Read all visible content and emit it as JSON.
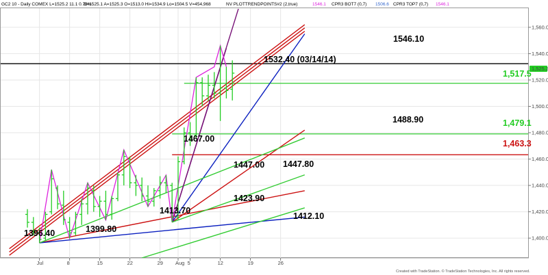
{
  "header": {
    "symbol_info": "GC2 10 - Daily   COMEX  L=1525.2  11.1  0.73%",
    "ohlc": "B=1525.1   A=1525.3   O=1513.0   Hi=1534.9   Lo=1504.5   V=454,968",
    "study_1": "NV  PLOTTRENDPOINTS#2 (2,true)",
    "study_1_value": "1546.1",
    "study_2": "CPR3 BOT7 (0,7)",
    "study_2_value": "1506.6",
    "study_3": "CPR3 TOP7 (0,7)",
    "study_3_value": "1546.1"
  },
  "footer": {
    "credit": "Created with TradeStation. © TradeStation Technologies, Inc. All rights reserved."
  },
  "colors": {
    "up_bar": "#22cc22",
    "down_bar": "#22cc22",
    "swing_line": "#dd22dd",
    "red_line": "#cc1111",
    "blue_line": "#0a1fbf",
    "green_line": "#33cc33",
    "purple_line": "#771177",
    "last_price_tag": "#22cc22"
  },
  "annotations": [
    {
      "text": "1396.40",
      "color": "#000000"
    },
    {
      "text": "1399.80",
      "color": "#000000"
    },
    {
      "text": "1413.70",
      "color": "#000000"
    },
    {
      "text": "1467.00",
      "color": "#000000"
    },
    {
      "text": "1423.90",
      "color": "#000000"
    },
    {
      "text": "1447.00",
      "color": "#000000"
    },
    {
      "text": "1447.80",
      "color": "#000000"
    },
    {
      "text": "1412.10",
      "color": "#000000"
    },
    {
      "text": "1532.40 (03/14/14)",
      "color": "#000000"
    },
    {
      "text": "1546.10",
      "color": "#000000"
    },
    {
      "text": "1488.90",
      "color": "#000000"
    },
    {
      "text": "1,517.5",
      "color": "#22cc22"
    },
    {
      "text": "1,479.1",
      "color": "#22cc22"
    },
    {
      "text": "1,463.3",
      "color": "#cc1111"
    }
  ],
  "chart_data": {
    "type": "candlestick",
    "title": "",
    "xlabel": "",
    "ylabel": "",
    "ylim": [
      1385,
      1575
    ],
    "last_price_label": "1,525.2",
    "y_ticks": [
      "1,560.0",
      "1,540.0",
      "1,520.0",
      "1,500.0",
      "1,480.0",
      "1,460.0",
      "1,440.0",
      "1,420.0",
      "1,400.0"
    ],
    "y_tick_values": [
      1560,
      1540,
      1520,
      1500,
      1480,
      1460,
      1440,
      1420,
      1400
    ],
    "x_ticks": [
      "Jul",
      "8",
      "15",
      "22",
      "29",
      "Aug",
      "5",
      "12",
      "19",
      "26"
    ],
    "x_tick_index": [
      2,
      7,
      12,
      17,
      22,
      25,
      27,
      32,
      37,
      42
    ],
    "bars": [
      {
        "high": 1422,
        "low": 1408,
        "open": 1418,
        "close": 1412
      },
      {
        "high": 1416,
        "low": 1402,
        "open": 1412,
        "close": 1405
      },
      {
        "high": 1408,
        "low": 1396.4,
        "open": 1404,
        "close": 1399
      },
      {
        "high": 1420,
        "low": 1398,
        "open": 1400,
        "close": 1418
      },
      {
        "high": 1452,
        "low": 1418,
        "open": 1420,
        "close": 1445
      },
      {
        "high": 1440,
        "low": 1422,
        "open": 1438,
        "close": 1426
      },
      {
        "high": 1436,
        "low": 1410,
        "open": 1425,
        "close": 1414
      },
      {
        "high": 1416,
        "low": 1399.8,
        "open": 1412,
        "close": 1404
      },
      {
        "high": 1420,
        "low": 1402,
        "open": 1404,
        "close": 1418
      },
      {
        "high": 1430,
        "low": 1410,
        "open": 1418,
        "close": 1426
      },
      {
        "high": 1442,
        "low": 1418,
        "open": 1426,
        "close": 1438
      },
      {
        "high": 1440,
        "low": 1420,
        "open": 1436,
        "close": 1424
      },
      {
        "high": 1432,
        "low": 1416,
        "open": 1424,
        "close": 1428
      },
      {
        "high": 1436,
        "low": 1413.7,
        "open": 1428,
        "close": 1418
      },
      {
        "high": 1432,
        "low": 1414,
        "open": 1418,
        "close": 1430
      },
      {
        "high": 1450,
        "low": 1428,
        "open": 1430,
        "close": 1448
      },
      {
        "high": 1467,
        "low": 1440,
        "open": 1448,
        "close": 1462
      },
      {
        "high": 1462,
        "low": 1438,
        "open": 1460,
        "close": 1442
      },
      {
        "high": 1448,
        "low": 1432,
        "open": 1442,
        "close": 1440
      },
      {
        "high": 1446,
        "low": 1428,
        "open": 1440,
        "close": 1432
      },
      {
        "high": 1440,
        "low": 1423.9,
        "open": 1432,
        "close": 1428
      },
      {
        "high": 1438,
        "low": 1424,
        "open": 1428,
        "close": 1436
      },
      {
        "high": 1447,
        "low": 1430,
        "open": 1436,
        "close": 1442
      },
      {
        "high": 1447.8,
        "low": 1434,
        "open": 1442,
        "close": 1440
      },
      {
        "high": 1442,
        "low": 1412.1,
        "open": 1440,
        "close": 1416
      },
      {
        "high": 1462,
        "low": 1414,
        "open": 1416,
        "close": 1458
      },
      {
        "high": 1484,
        "low": 1456,
        "open": 1458,
        "close": 1480
      },
      {
        "high": 1488,
        "low": 1470,
        "open": 1480,
        "close": 1476
      },
      {
        "high": 1522,
        "low": 1476,
        "open": 1478,
        "close": 1518
      },
      {
        "high": 1522,
        "low": 1500,
        "open": 1518,
        "close": 1508
      },
      {
        "high": 1524,
        "low": 1504,
        "open": 1508,
        "close": 1516
      },
      {
        "high": 1526,
        "low": 1506,
        "open": 1516,
        "close": 1510
      },
      {
        "high": 1546.1,
        "low": 1488.9,
        "open": 1510,
        "close": 1514
      },
      {
        "high": 1530,
        "low": 1506,
        "open": 1514,
        "close": 1512
      },
      {
        "high": 1534.9,
        "low": 1504.5,
        "open": 1513,
        "close": 1525.2
      }
    ],
    "swing_points": [
      {
        "bar": 2,
        "value": 1396.4
      },
      {
        "bar": 4,
        "value": 1452
      },
      {
        "bar": 7,
        "value": 1399.8
      },
      {
        "bar": 10,
        "value": 1442
      },
      {
        "bar": 13,
        "value": 1413.7
      },
      {
        "bar": 16,
        "value": 1467
      },
      {
        "bar": 20,
        "value": 1423.9
      },
      {
        "bar": 23,
        "value": 1447.8
      },
      {
        "bar": 24,
        "value": 1412.1
      },
      {
        "bar": 28,
        "value": 1522
      },
      {
        "bar": 31,
        "value": 1530
      },
      {
        "bar": 32,
        "value": 1546.1
      },
      {
        "bar": 33,
        "value": 1530
      }
    ],
    "horizontal_levels": [
      {
        "value": 1532.4,
        "color": "#000000",
        "from_bar": 0
      },
      {
        "value": 1517.5,
        "color": "#33cc33",
        "from_bar": 26
      },
      {
        "value": 1479.1,
        "color": "#33cc33",
        "from_bar": 24
      },
      {
        "value": 1463.3,
        "color": "#cc1111",
        "from_bar": 24
      }
    ],
    "trend_lines": [
      {
        "color": "#cc1111",
        "x1": -3,
        "y1": 1387,
        "x2": 46,
        "y2": 1557
      },
      {
        "color": "#cc1111",
        "x1": -3,
        "y1": 1389.5,
        "x2": 46,
        "y2": 1559.5
      },
      {
        "color": "#cc1111",
        "x1": -3,
        "y1": 1392,
        "x2": 46,
        "y2": 1562
      },
      {
        "color": "#cc1111",
        "x1": 2,
        "y1": 1396.4,
        "x2": 46,
        "y2": 1436
      },
      {
        "color": "#cc1111",
        "x1": 24,
        "y1": 1412.1,
        "x2": 46,
        "y2": 1482
      },
      {
        "color": "#0a1fbf",
        "x1": 2,
        "y1": 1396.4,
        "x2": 46,
        "y2": 1416
      },
      {
        "color": "#0a1fbf",
        "x1": 24,
        "y1": 1412.1,
        "x2": 46,
        "y2": 1555
      },
      {
        "color": "#33cc33",
        "x1": 2,
        "y1": 1396.4,
        "x2": 46,
        "y2": 1476
      },
      {
        "color": "#33cc33",
        "x1": 24,
        "y1": 1412.1,
        "x2": 46,
        "y2": 1448
      },
      {
        "color": "#33cc33",
        "x1": 19,
        "y1": 1385,
        "x2": 46,
        "y2": 1423
      },
      {
        "color": "#771177",
        "x1": 24,
        "y1": 1412.1,
        "x2": 35,
        "y2": 1574
      },
      {
        "color": "#771177",
        "x1": 24,
        "y1": 1412.1,
        "x2": 33,
        "y2": 1544
      }
    ]
  }
}
